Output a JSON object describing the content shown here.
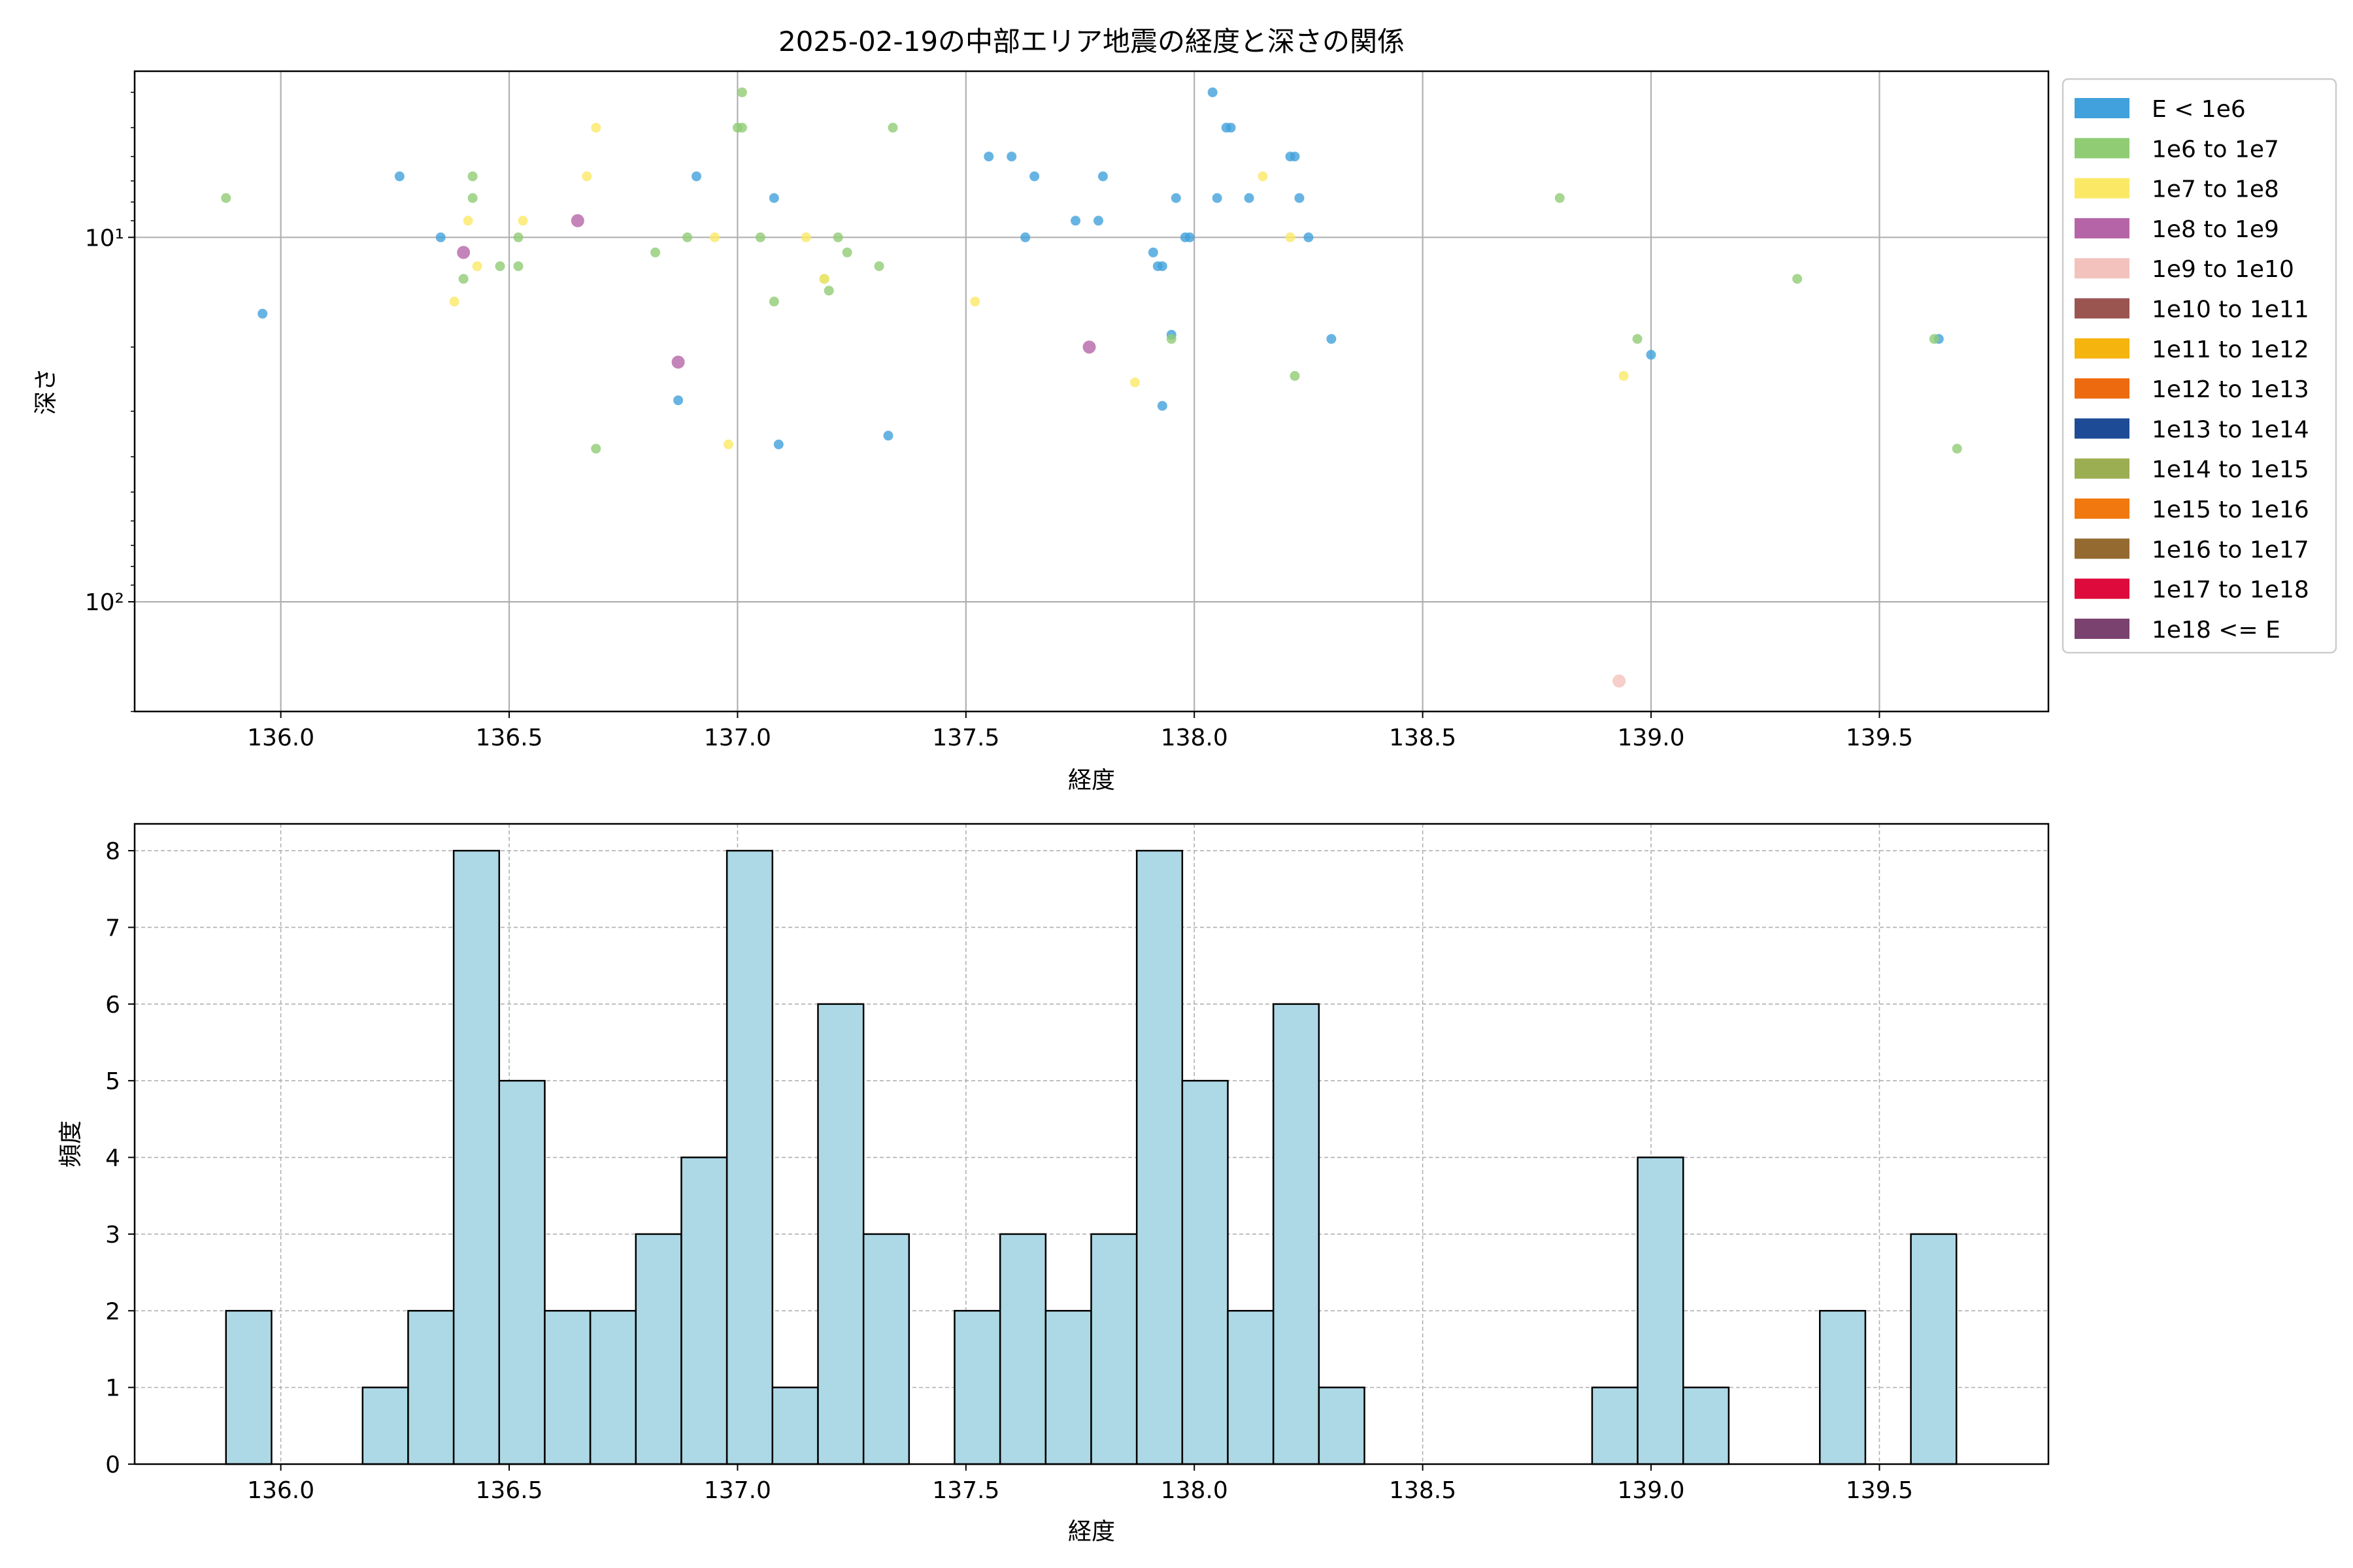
{
  "chart_data": [
    {
      "type": "scatter",
      "title": "2025-02-19の中部エリア地震の経度と深さの関係",
      "xlabel": "経度",
      "ylabel": "深さ",
      "xlim": [
        135.68,
        139.87
      ],
      "ylim": [
        200,
        3.5
      ],
      "yscale": "log",
      "y_inverted": true,
      "x_ticks": [
        "136.0",
        "136.5",
        "137.0",
        "137.5",
        "138.0",
        "138.5",
        "139.0",
        "139.5"
      ],
      "y_ticks": [
        "10¹",
        "10²"
      ],
      "grid": true,
      "legend_position": "outside-right",
      "legend": [
        {
          "label": "E < 1e6",
          "color": "#41a1dc"
        },
        {
          "label": "1e6 to 1e7",
          "color": "#90cc74"
        },
        {
          "label": "1e7 to 1e8",
          "color": "#fbe966"
        },
        {
          "label": "1e8 to 1e9",
          "color": "#b565a7"
        },
        {
          "label": "1e9 to 1e10",
          "color": "#f4c2bd"
        },
        {
          "label": "1e10 to 1e11",
          "color": "#9b5550"
        },
        {
          "label": "1e11 to 1e12",
          "color": "#f6b40e"
        },
        {
          "label": "1e12 to 1e13",
          "color": "#ee6a0e"
        },
        {
          "label": "1e13 to 1e14",
          "color": "#1e4b95"
        },
        {
          "label": "1e14 to 1e15",
          "color": "#9cae52"
        },
        {
          "label": "1e15 to 1e16",
          "color": "#f0780e"
        },
        {
          "label": "1e16 to 1e17",
          "color": "#946a30"
        },
        {
          "label": "1e17 to 1e18",
          "color": "#dd0a3b"
        },
        {
          "label": "1e18 <= E",
          "color": "#7a426e"
        }
      ],
      "series": [
        {
          "class": "E < 1e6",
          "points": [
            [
              135.96,
              16.2
            ],
            [
              136.26,
              6.8
            ],
            [
              136.35,
              10.0
            ],
            [
              136.87,
              28.0
            ],
            [
              136.91,
              6.8
            ],
            [
              137.08,
              7.8
            ],
            [
              137.09,
              37.0
            ],
            [
              137.33,
              35.0
            ],
            [
              137.55,
              6.0
            ],
            [
              137.6,
              6.0
            ],
            [
              137.63,
              10.0
            ],
            [
              137.65,
              6.8
            ],
            [
              137.74,
              9.0
            ],
            [
              137.79,
              9.0
            ],
            [
              137.8,
              6.8
            ],
            [
              137.91,
              11.0
            ],
            [
              137.92,
              12.0
            ],
            [
              137.93,
              12.0
            ],
            [
              137.93,
              29.0
            ],
            [
              137.95,
              18.5
            ],
            [
              137.96,
              7.8
            ],
            [
              137.98,
              10.0
            ],
            [
              137.99,
              10.0
            ],
            [
              138.04,
              4.0
            ],
            [
              138.05,
              7.8
            ],
            [
              138.07,
              5.0
            ],
            [
              138.08,
              5.0
            ],
            [
              138.12,
              7.8
            ],
            [
              138.21,
              6.0
            ],
            [
              138.22,
              6.0
            ],
            [
              138.23,
              7.8
            ],
            [
              138.25,
              10.0
            ],
            [
              138.3,
              19.0
            ],
            [
              139.0,
              21.0
            ],
            [
              139.63,
              19.0
            ]
          ]
        },
        {
          "class": "1e6 to 1e7",
          "points": [
            [
              135.88,
              7.8
            ],
            [
              136.4,
              13.0
            ],
            [
              136.42,
              6.8
            ],
            [
              136.42,
              7.8
            ],
            [
              136.48,
              12.0
            ],
            [
              136.52,
              10.0
            ],
            [
              136.52,
              12.0
            ],
            [
              136.69,
              38.0
            ],
            [
              136.82,
              11.0
            ],
            [
              136.89,
              10.0
            ],
            [
              137.0,
              5.0
            ],
            [
              137.01,
              4.0
            ],
            [
              137.01,
              5.0
            ],
            [
              137.05,
              10.0
            ],
            [
              137.08,
              15.0
            ],
            [
              137.19,
              13.0
            ],
            [
              137.2,
              14.0
            ],
            [
              137.22,
              10.0
            ],
            [
              137.24,
              11.0
            ],
            [
              137.31,
              12.0
            ],
            [
              137.34,
              5.0
            ],
            [
              137.95,
              19.0
            ],
            [
              138.22,
              24.0
            ],
            [
              138.8,
              7.8
            ],
            [
              138.97,
              19.0
            ],
            [
              139.32,
              13.0
            ],
            [
              139.62,
              19.0
            ],
            [
              139.67,
              38.0
            ]
          ]
        },
        {
          "class": "1e7 to 1e8",
          "points": [
            [
              136.38,
              15.0
            ],
            [
              136.41,
              9.0
            ],
            [
              136.43,
              12.0
            ],
            [
              136.53,
              9.0
            ],
            [
              136.67,
              6.8
            ],
            [
              136.69,
              5.0
            ],
            [
              136.95,
              10.0
            ],
            [
              136.98,
              37.0
            ],
            [
              137.15,
              10.0
            ],
            [
              137.19,
              13.0
            ],
            [
              137.52,
              15.0
            ],
            [
              137.87,
              25.0
            ],
            [
              138.15,
              6.8
            ],
            [
              138.21,
              10.0
            ],
            [
              138.94,
              24.0
            ]
          ]
        },
        {
          "class": "1e8 to 1e9",
          "points": [
            [
              136.4,
              11.0
            ],
            [
              136.65,
              9.0
            ],
            [
              136.87,
              22.0
            ],
            [
              137.77,
              20.0
            ]
          ]
        },
        {
          "class": "1e9 to 1e10",
          "points": [
            [
              138.93,
              165.0
            ]
          ]
        }
      ]
    },
    {
      "type": "bar",
      "chart_kind": "histogram",
      "xlabel": "経度",
      "ylabel": "頻度",
      "xlim": [
        135.68,
        139.87
      ],
      "ylim": [
        0,
        8.35
      ],
      "x_ticks": [
        "136.0",
        "136.5",
        "137.0",
        "137.5",
        "138.0",
        "138.5",
        "139.0",
        "139.5"
      ],
      "y_ticks": [
        "0",
        "1",
        "2",
        "3",
        "4",
        "5",
        "6",
        "7",
        "8"
      ],
      "grid": true,
      "bar_color": "#add8e6",
      "bin_start": 135.88,
      "bin_width": 0.0997,
      "counts": [
        2,
        0,
        0,
        1,
        2,
        8,
        5,
        2,
        2,
        3,
        4,
        8,
        1,
        6,
        3,
        0,
        2,
        3,
        2,
        3,
        8,
        5,
        2,
        6,
        1,
        0,
        0,
        0,
        0,
        0,
        1,
        4,
        1,
        0,
        0,
        2,
        0,
        3
      ]
    }
  ]
}
